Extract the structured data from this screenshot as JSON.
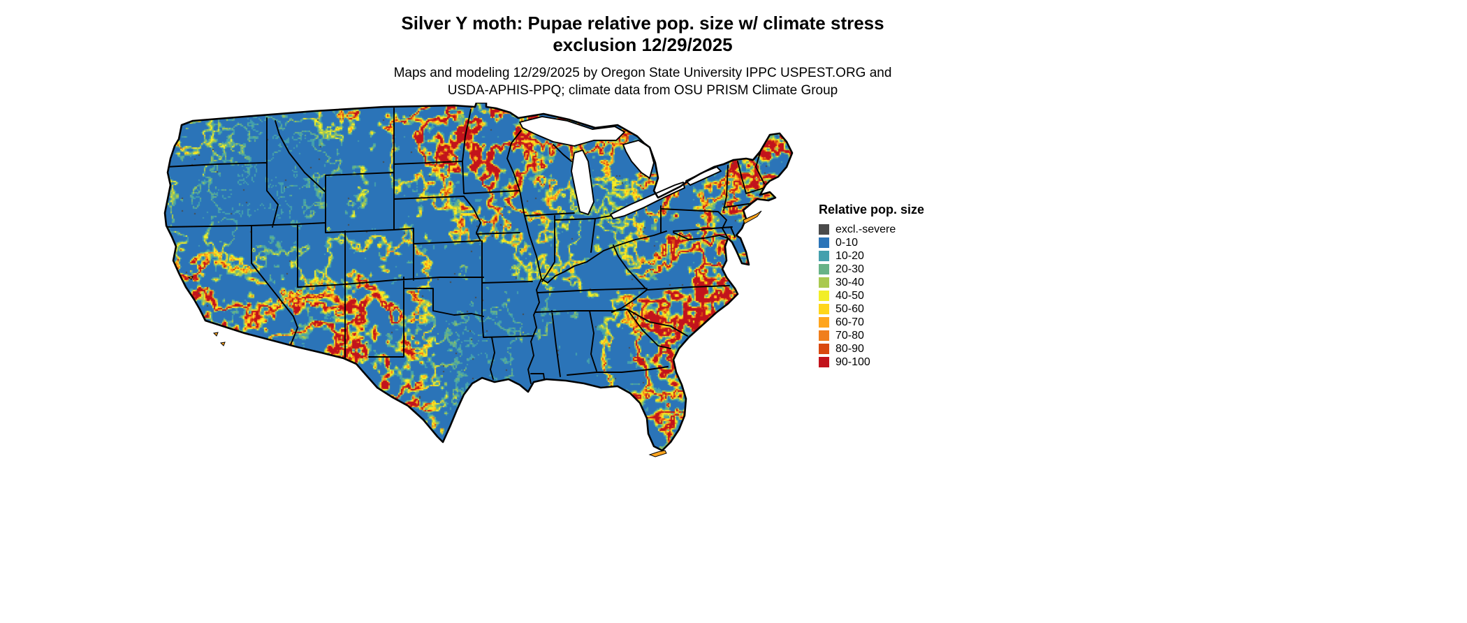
{
  "header": {
    "title_line1": "Silver Y moth: Pupae relative pop. size w/ climate stress",
    "title_line2": "exclusion 12/29/2025",
    "subtitle_line1": "Maps and modeling 12/29/2025 by Oregon State University IPPC USPEST.ORG and",
    "subtitle_line2": "USDA-APHIS-PPQ; climate data from OSU PRISM Climate Group"
  },
  "legend": {
    "title": "Relative pop. size",
    "items": [
      {
        "label": "excl.-severe",
        "color": "#4a4a4a"
      },
      {
        "label": "0-10",
        "color": "#2b74b8"
      },
      {
        "label": "10-20",
        "color": "#44a0ad"
      },
      {
        "label": "20-30",
        "color": "#67b287"
      },
      {
        "label": "30-40",
        "color": "#a9c94f"
      },
      {
        "label": "40-50",
        "color": "#f2ee27"
      },
      {
        "label": "50-60",
        "color": "#ffd61a"
      },
      {
        "label": "60-70",
        "color": "#ffa51e"
      },
      {
        "label": "70-80",
        "color": "#f07e1d"
      },
      {
        "label": "80-90",
        "color": "#d9480f"
      },
      {
        "label": "90-100",
        "color": "#c2131c"
      }
    ]
  },
  "map": {
    "name": "Contiguous United States raster map",
    "water_color": "#ffffff",
    "border_color": "#000000"
  }
}
